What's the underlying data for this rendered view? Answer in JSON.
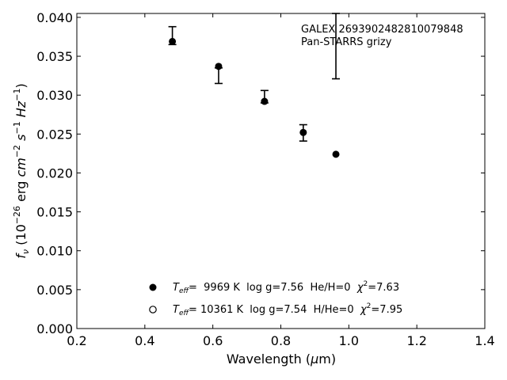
{
  "chart_data": {
    "type": "scatter",
    "xlabel_parts": [
      "Wavelength (",
      "μ",
      "m)"
    ],
    "ylabel_parts": [
      "f",
      "ν",
      " (10",
      "−26",
      " erg ",
      "cm",
      "−2",
      " ",
      "s",
      "−1",
      " ",
      "Hz",
      "−1",
      ")"
    ],
    "xlim": [
      0.2,
      1.4
    ],
    "ylim": [
      0.0,
      0.0405
    ],
    "x_ticks": [
      0.2,
      0.4,
      0.6,
      0.8,
      1.0,
      1.2,
      1.4
    ],
    "x_tick_labels": [
      "0.2",
      "0.4",
      "0.6",
      "0.8",
      "1.0",
      "1.2",
      "1.4"
    ],
    "y_ticks": [
      0.0,
      0.005,
      0.01,
      0.015,
      0.02,
      0.025,
      0.03,
      0.035,
      0.04
    ],
    "y_tick_labels": [
      "0.000",
      "0.005",
      "0.010",
      "0.015",
      "0.020",
      "0.025",
      "0.030",
      "0.035",
      "0.040"
    ],
    "grid": false,
    "annotation_lines": [
      "GALEX 2693902482810079848",
      "Pan-STARRS grizy"
    ],
    "observed": [
      {
        "x": 0.481,
        "y_low": 0.0365,
        "y_high": 0.0388
      },
      {
        "x": 0.617,
        "y_low": 0.0315,
        "y_high": 0.0335
      },
      {
        "x": 0.752,
        "y_low": 0.029,
        "y_high": 0.0306
      },
      {
        "x": 0.866,
        "y_low": 0.0241,
        "y_high": 0.0262
      },
      {
        "x": 0.962,
        "y_low": 0.0321,
        "y_high": 0.0405
      }
    ],
    "series": [
      {
        "marker": "filled-circle",
        "legend_parts": [
          "T",
          "eff",
          "=  9969 K  log g=7.56  He/H=0  ",
          "χ",
          "2",
          "=7.63"
        ],
        "x": [
          0.481,
          0.617,
          0.752,
          0.866,
          0.962
        ],
        "y": [
          0.0369,
          0.0337,
          0.0292,
          0.0252,
          0.0224
        ]
      },
      {
        "marker": "open-circle",
        "legend_parts": [
          "T",
          "eff",
          "= 10361 K  log g=7.54  H/He=0  ",
          "χ",
          "2",
          "=7.95"
        ],
        "x": [],
        "y": []
      }
    ],
    "legend_position": "lower-center",
    "colors": {
      "marker": "#000000",
      "axis": "#000000",
      "background": "#ffffff"
    }
  }
}
